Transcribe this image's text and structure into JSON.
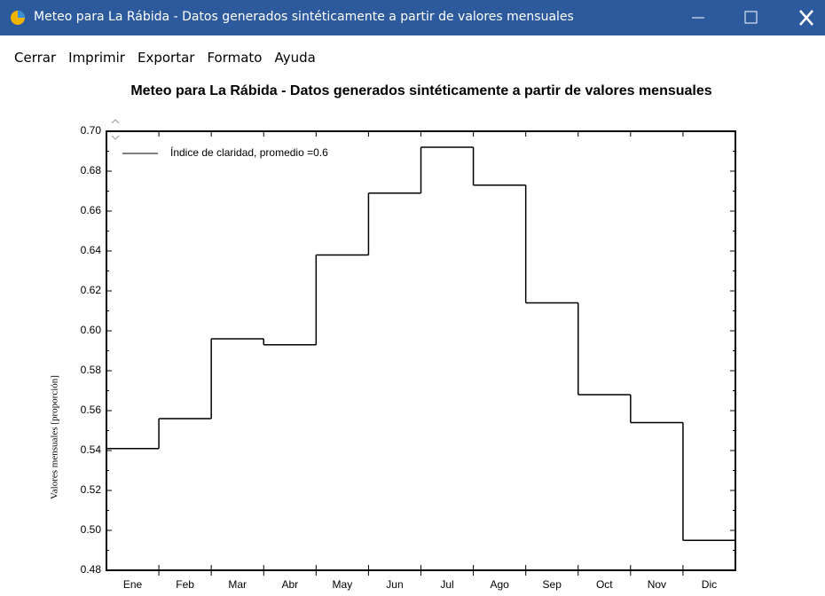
{
  "window": {
    "title": "Meteo para La Rábida - Datos generados sintéticamente a partir de valores mensuales"
  },
  "menu": [
    "Cerrar",
    "Imprimir",
    "Exportar",
    "Formato",
    "Ayuda"
  ],
  "chart_data": {
    "type": "step",
    "title": "Meteo para La Rábida - Datos generados sintéticamente a partir de valores mensuales",
    "ylabel": "Valores mensuales  [proporción]",
    "categories": [
      "Ene",
      "Feb",
      "Mar",
      "Abr",
      "May",
      "Jun",
      "Jul",
      "Ago",
      "Sep",
      "Oct",
      "Nov",
      "Dic"
    ],
    "series": [
      {
        "name": "Índice de claridad, promedio =0.6",
        "color": "#000000",
        "values": [
          0.541,
          0.556,
          0.596,
          0.593,
          0.638,
          0.669,
          0.692,
          0.673,
          0.614,
          0.568,
          0.554,
          0.495
        ]
      }
    ],
    "ylim": [
      0.48,
      0.7
    ],
    "yticks": [
      {
        "value": 0.48,
        "label": "0.48"
      },
      {
        "value": 0.5,
        "label": "0.50"
      },
      {
        "value": 0.52,
        "label": "0.52"
      },
      {
        "value": 0.54,
        "label": "0.54"
      },
      {
        "value": 0.56,
        "label": "0.56"
      },
      {
        "value": 0.58,
        "label": "0.58"
      },
      {
        "value": 0.6,
        "label": "0.60"
      },
      {
        "value": 0.62,
        "label": "0.62"
      },
      {
        "value": 0.64,
        "label": "0.64"
      },
      {
        "value": 0.66,
        "label": "0.66"
      },
      {
        "value": 0.68,
        "label": "0.68"
      },
      {
        "value": 0.7,
        "label": "0.70"
      }
    ],
    "legend": "upper left"
  }
}
